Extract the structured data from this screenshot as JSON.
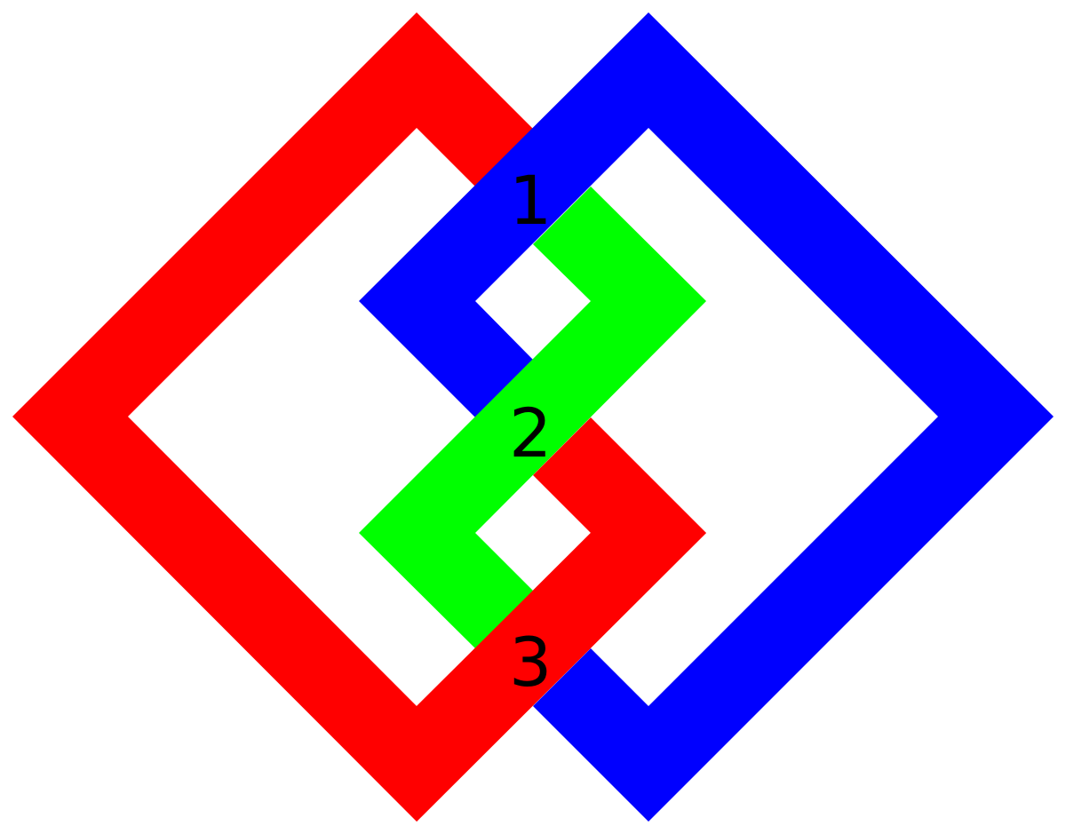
{
  "strands": {
    "red": {
      "color": "#ff0000"
    },
    "blue": {
      "color": "#0000ff"
    },
    "green": {
      "color": "#00ff00"
    }
  },
  "crossings": [
    {
      "label": "1"
    },
    {
      "label": "2"
    },
    {
      "label": "3"
    }
  ]
}
